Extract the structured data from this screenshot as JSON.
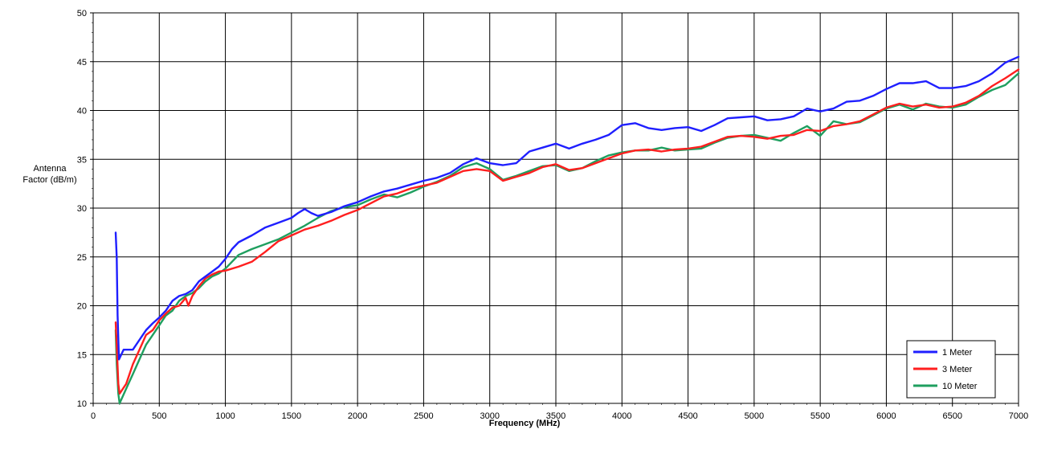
{
  "chart_data": {
    "type": "line",
    "title": "",
    "xlabel": "Frequency (MHz)",
    "ylabel": [
      "Antenna",
      "Factor (dB/m)"
    ],
    "xlim": [
      0,
      7000
    ],
    "ylim": [
      10,
      50
    ],
    "xticks": [
      0,
      500,
      1000,
      1500,
      2000,
      2500,
      3000,
      3500,
      4000,
      4500,
      5000,
      5500,
      6000,
      6500,
      7000
    ],
    "yticks": [
      10,
      15,
      20,
      25,
      30,
      35,
      40,
      45,
      50
    ],
    "grid": true,
    "legend_position": "bottom-right",
    "series": [
      {
        "name": "1 Meter",
        "color": "#1f1fff",
        "points": [
          [
            170,
            27.5
          ],
          [
            178,
            25
          ],
          [
            185,
            19
          ],
          [
            195,
            14.5
          ],
          [
            230,
            15.5
          ],
          [
            300,
            15.5
          ],
          [
            350,
            16.5
          ],
          [
            400,
            17.5
          ],
          [
            450,
            18.2
          ],
          [
            500,
            18.8
          ],
          [
            550,
            19.5
          ],
          [
            600,
            20.5
          ],
          [
            650,
            21
          ],
          [
            700,
            21.2
          ],
          [
            750,
            21.6
          ],
          [
            800,
            22.5
          ],
          [
            850,
            23
          ],
          [
            900,
            23.5
          ],
          [
            950,
            24
          ],
          [
            1000,
            24.8
          ],
          [
            1050,
            25.8
          ],
          [
            1100,
            26.5
          ],
          [
            1200,
            27.2
          ],
          [
            1300,
            28
          ],
          [
            1400,
            28.5
          ],
          [
            1500,
            29
          ],
          [
            1550,
            29.5
          ],
          [
            1600,
            29.9
          ],
          [
            1650,
            29.5
          ],
          [
            1700,
            29.2
          ],
          [
            1800,
            29.6
          ],
          [
            1900,
            30.2
          ],
          [
            2000,
            30.6
          ],
          [
            2100,
            31.2
          ],
          [
            2200,
            31.7
          ],
          [
            2300,
            32
          ],
          [
            2400,
            32.4
          ],
          [
            2500,
            32.8
          ],
          [
            2600,
            33.1
          ],
          [
            2700,
            33.6
          ],
          [
            2800,
            34.5
          ],
          [
            2900,
            35.1
          ],
          [
            3000,
            34.6
          ],
          [
            3100,
            34.4
          ],
          [
            3200,
            34.6
          ],
          [
            3300,
            35.8
          ],
          [
            3400,
            36.2
          ],
          [
            3500,
            36.6
          ],
          [
            3600,
            36.1
          ],
          [
            3700,
            36.6
          ],
          [
            3800,
            37
          ],
          [
            3900,
            37.5
          ],
          [
            4000,
            38.5
          ],
          [
            4100,
            38.7
          ],
          [
            4200,
            38.2
          ],
          [
            4300,
            38
          ],
          [
            4400,
            38.2
          ],
          [
            4500,
            38.3
          ],
          [
            4600,
            37.9
          ],
          [
            4700,
            38.5
          ],
          [
            4800,
            39.2
          ],
          [
            4900,
            39.3
          ],
          [
            5000,
            39.4
          ],
          [
            5100,
            39
          ],
          [
            5200,
            39.1
          ],
          [
            5300,
            39.4
          ],
          [
            5400,
            40.2
          ],
          [
            5500,
            39.9
          ],
          [
            5600,
            40.2
          ],
          [
            5700,
            40.9
          ],
          [
            5800,
            41
          ],
          [
            5900,
            41.5
          ],
          [
            6000,
            42.2
          ],
          [
            6100,
            42.8
          ],
          [
            6200,
            42.8
          ],
          [
            6300,
            43
          ],
          [
            6400,
            42.3
          ],
          [
            6500,
            42.3
          ],
          [
            6600,
            42.5
          ],
          [
            6700,
            43
          ],
          [
            6800,
            43.8
          ],
          [
            6900,
            44.9
          ],
          [
            7000,
            45.5
          ]
        ]
      },
      {
        "name": "3 Meter",
        "color": "#ff1f1f",
        "points": [
          [
            170,
            18.3
          ],
          [
            178,
            16
          ],
          [
            190,
            12
          ],
          [
            200,
            11
          ],
          [
            250,
            12
          ],
          [
            300,
            14
          ],
          [
            350,
            15.5
          ],
          [
            400,
            17
          ],
          [
            450,
            17.5
          ],
          [
            500,
            18.5
          ],
          [
            550,
            19.2
          ],
          [
            600,
            19.8
          ],
          [
            650,
            20
          ],
          [
            700,
            20.8
          ],
          [
            720,
            20
          ],
          [
            750,
            21
          ],
          [
            800,
            22
          ],
          [
            850,
            22.8
          ],
          [
            900,
            23.2
          ],
          [
            950,
            23.5
          ],
          [
            1000,
            23.6
          ],
          [
            1100,
            24
          ],
          [
            1200,
            24.5
          ],
          [
            1300,
            25.5
          ],
          [
            1400,
            26.6
          ],
          [
            1500,
            27.2
          ],
          [
            1600,
            27.8
          ],
          [
            1700,
            28.2
          ],
          [
            1800,
            28.7
          ],
          [
            1900,
            29.3
          ],
          [
            2000,
            29.8
          ],
          [
            2100,
            30.5
          ],
          [
            2200,
            31.2
          ],
          [
            2300,
            31.5
          ],
          [
            2400,
            32
          ],
          [
            2500,
            32.3
          ],
          [
            2600,
            32.6
          ],
          [
            2700,
            33.2
          ],
          [
            2800,
            33.8
          ],
          [
            2900,
            34
          ],
          [
            3000,
            33.8
          ],
          [
            3100,
            32.8
          ],
          [
            3200,
            33.2
          ],
          [
            3300,
            33.6
          ],
          [
            3400,
            34.2
          ],
          [
            3500,
            34.5
          ],
          [
            3600,
            33.9
          ],
          [
            3700,
            34.1
          ],
          [
            3800,
            34.6
          ],
          [
            3900,
            35.1
          ],
          [
            4000,
            35.6
          ],
          [
            4100,
            35.9
          ],
          [
            4200,
            36
          ],
          [
            4300,
            35.8
          ],
          [
            4400,
            36
          ],
          [
            4500,
            36.1
          ],
          [
            4600,
            36.3
          ],
          [
            4700,
            36.8
          ],
          [
            4800,
            37.3
          ],
          [
            4900,
            37.4
          ],
          [
            5000,
            37.3
          ],
          [
            5100,
            37.1
          ],
          [
            5200,
            37.4
          ],
          [
            5300,
            37.5
          ],
          [
            5400,
            38
          ],
          [
            5500,
            37.9
          ],
          [
            5600,
            38.4
          ],
          [
            5700,
            38.6
          ],
          [
            5800,
            38.9
          ],
          [
            5900,
            39.6
          ],
          [
            6000,
            40.3
          ],
          [
            6100,
            40.7
          ],
          [
            6200,
            40.4
          ],
          [
            6300,
            40.6
          ],
          [
            6400,
            40.3
          ],
          [
            6500,
            40.4
          ],
          [
            6600,
            40.8
          ],
          [
            6700,
            41.5
          ],
          [
            6800,
            42.5
          ],
          [
            6900,
            43.3
          ],
          [
            7000,
            44.2
          ]
        ]
      },
      {
        "name": "10 Meter",
        "color": "#1f9f5f",
        "points": [
          [
            170,
            17.5
          ],
          [
            178,
            14
          ],
          [
            190,
            11
          ],
          [
            200,
            10
          ],
          [
            250,
            11.5
          ],
          [
            300,
            13
          ],
          [
            350,
            14.5
          ],
          [
            400,
            16
          ],
          [
            450,
            17
          ],
          [
            500,
            18
          ],
          [
            550,
            19
          ],
          [
            600,
            19.5
          ],
          [
            650,
            20.5
          ],
          [
            700,
            21
          ],
          [
            750,
            21.3
          ],
          [
            800,
            21.8
          ],
          [
            850,
            22.5
          ],
          [
            900,
            23
          ],
          [
            950,
            23.3
          ],
          [
            1000,
            23.8
          ],
          [
            1100,
            25.2
          ],
          [
            1200,
            25.8
          ],
          [
            1300,
            26.3
          ],
          [
            1400,
            26.8
          ],
          [
            1500,
            27.5
          ],
          [
            1600,
            28.2
          ],
          [
            1700,
            29
          ],
          [
            1800,
            29.7
          ],
          [
            1900,
            30.1
          ],
          [
            2000,
            30.3
          ],
          [
            2100,
            30.9
          ],
          [
            2200,
            31.4
          ],
          [
            2300,
            31.1
          ],
          [
            2400,
            31.6
          ],
          [
            2500,
            32.2
          ],
          [
            2600,
            32.7
          ],
          [
            2700,
            33.3
          ],
          [
            2800,
            34.2
          ],
          [
            2900,
            34.6
          ],
          [
            3000,
            34
          ],
          [
            3100,
            32.9
          ],
          [
            3200,
            33.3
          ],
          [
            3300,
            33.8
          ],
          [
            3400,
            34.3
          ],
          [
            3500,
            34.4
          ],
          [
            3600,
            33.8
          ],
          [
            3700,
            34.1
          ],
          [
            3800,
            34.8
          ],
          [
            3900,
            35.4
          ],
          [
            4000,
            35.7
          ],
          [
            4100,
            35.9
          ],
          [
            4200,
            35.9
          ],
          [
            4300,
            36.2
          ],
          [
            4400,
            35.9
          ],
          [
            4500,
            36
          ],
          [
            4600,
            36.1
          ],
          [
            4700,
            36.7
          ],
          [
            4800,
            37.2
          ],
          [
            4900,
            37.4
          ],
          [
            5000,
            37.5
          ],
          [
            5100,
            37.2
          ],
          [
            5200,
            36.9
          ],
          [
            5300,
            37.7
          ],
          [
            5400,
            38.4
          ],
          [
            5500,
            37.4
          ],
          [
            5600,
            38.9
          ],
          [
            5700,
            38.6
          ],
          [
            5800,
            38.8
          ],
          [
            5900,
            39.5
          ],
          [
            6000,
            40.2
          ],
          [
            6100,
            40.6
          ],
          [
            6200,
            40.1
          ],
          [
            6300,
            40.7
          ],
          [
            6400,
            40.4
          ],
          [
            6500,
            40.3
          ],
          [
            6600,
            40.6
          ],
          [
            6700,
            41.4
          ],
          [
            6800,
            42.1
          ],
          [
            6900,
            42.6
          ],
          [
            7000,
            43.8
          ]
        ]
      }
    ]
  }
}
